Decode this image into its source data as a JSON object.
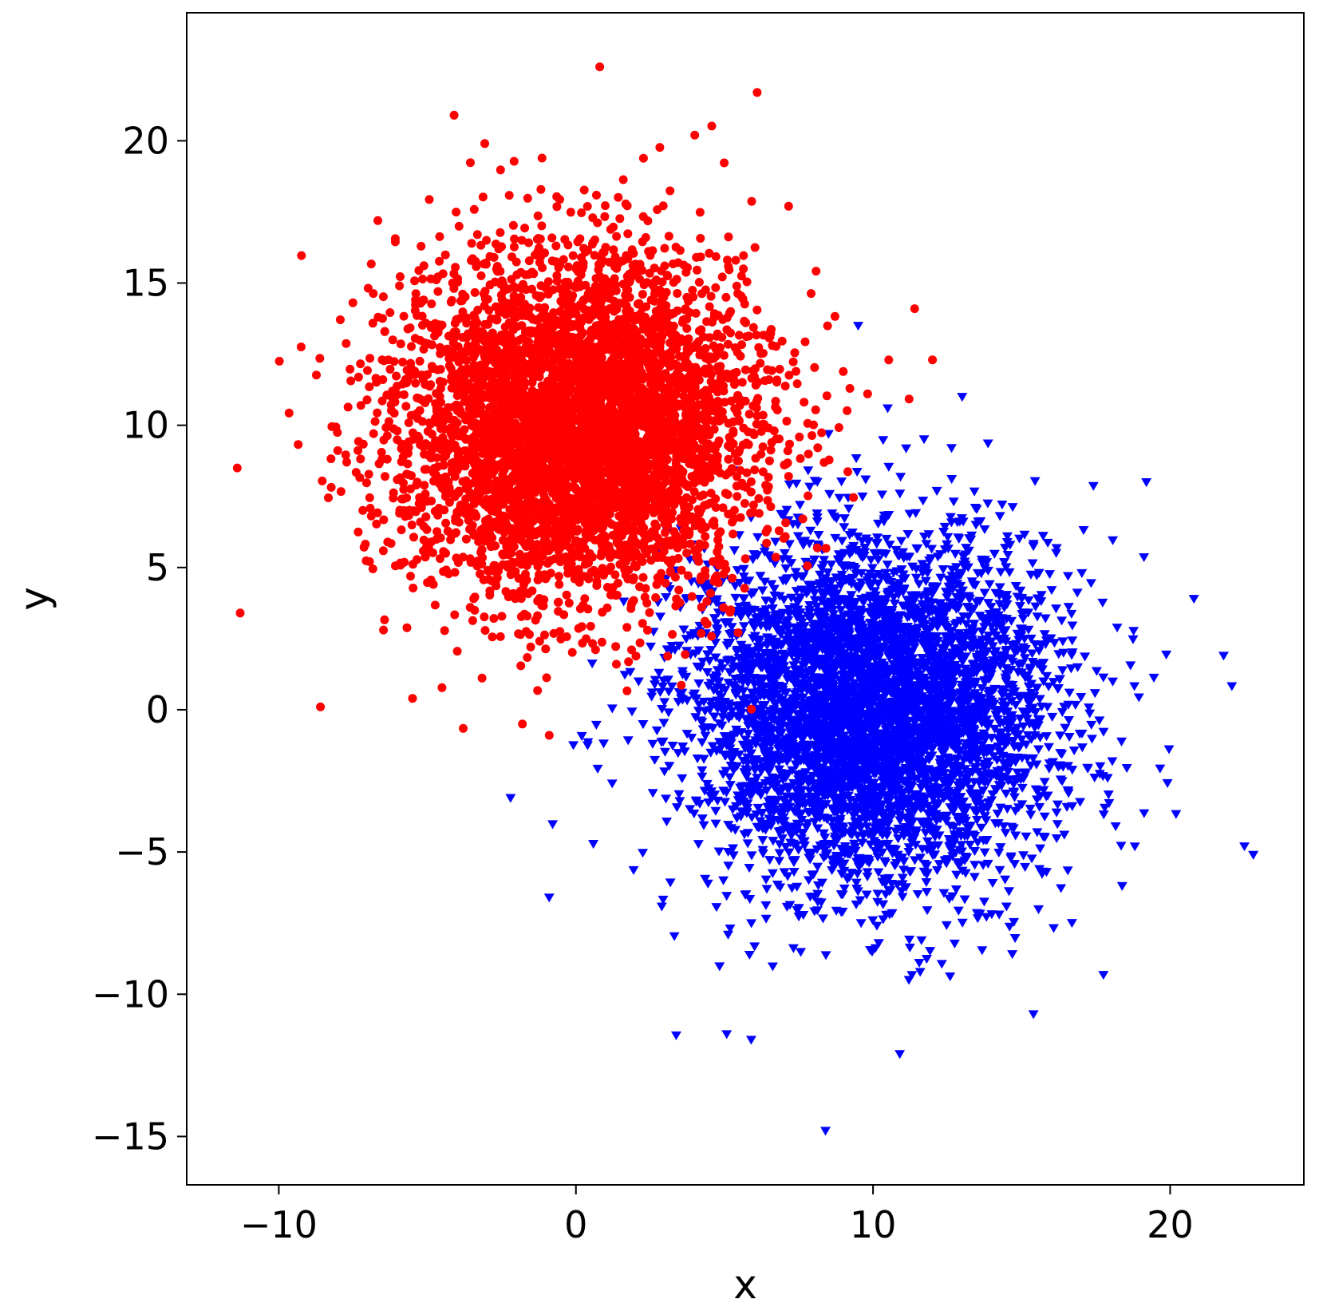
{
  "chart_data": {
    "type": "scatter",
    "title": "",
    "xlabel": "x",
    "ylabel": "y",
    "xlim": [
      -13.1,
      24.5
    ],
    "ylim": [
      -16.7,
      24.5
    ],
    "grid": false,
    "legend": "none",
    "x_ticks": [
      -10,
      0,
      10,
      20
    ],
    "y_ticks": [
      -15,
      -10,
      -5,
      0,
      5,
      10,
      15,
      20
    ],
    "x_tick_labels": [
      "−10",
      "0",
      "10",
      "20"
    ],
    "y_tick_labels": [
      "−15",
      "−10",
      "−5",
      "0",
      "5",
      "10",
      "15",
      "20"
    ],
    "series": [
      {
        "marker": "circle",
        "color": "#ff0000",
        "distribution": {
          "center": [
            0,
            10
          ],
          "std": [
            3,
            3
          ],
          "count": 5000
        },
        "outliers": [
          [
            -11.4,
            8.5
          ],
          [
            -11.3,
            3.4
          ],
          [
            -8.6,
            0.1
          ],
          [
            -5.5,
            0.4
          ],
          [
            0.8,
            22.6
          ],
          [
            6.1,
            21.7
          ],
          [
            -4.1,
            20.9
          ],
          [
            4,
            20.2
          ],
          [
            11.4,
            14.1
          ],
          [
            12,
            12.3
          ],
          [
            -1.8,
            -0.5
          ],
          [
            -0.9,
            -0.9
          ]
        ]
      },
      {
        "marker": "triangle-down",
        "color": "#0000ff",
        "distribution": {
          "center": [
            10,
            0
          ],
          "std": [
            3,
            3
          ],
          "count": 5000
        },
        "outliers": [
          [
            8.4,
            -14.8
          ],
          [
            10.9,
            -12.1
          ],
          [
            15.4,
            -10.7
          ],
          [
            5.9,
            -11.6
          ],
          [
            22.8,
            -5.1
          ],
          [
            22.5,
            -4.8
          ],
          [
            21.8,
            1.9
          ],
          [
            20.8,
            3.9
          ],
          [
            -0.9,
            -6.6
          ],
          [
            -2.2,
            -3.1
          ],
          [
            13,
            11
          ],
          [
            9.5,
            13.5
          ],
          [
            19.2,
            8
          ]
        ]
      }
    ]
  }
}
